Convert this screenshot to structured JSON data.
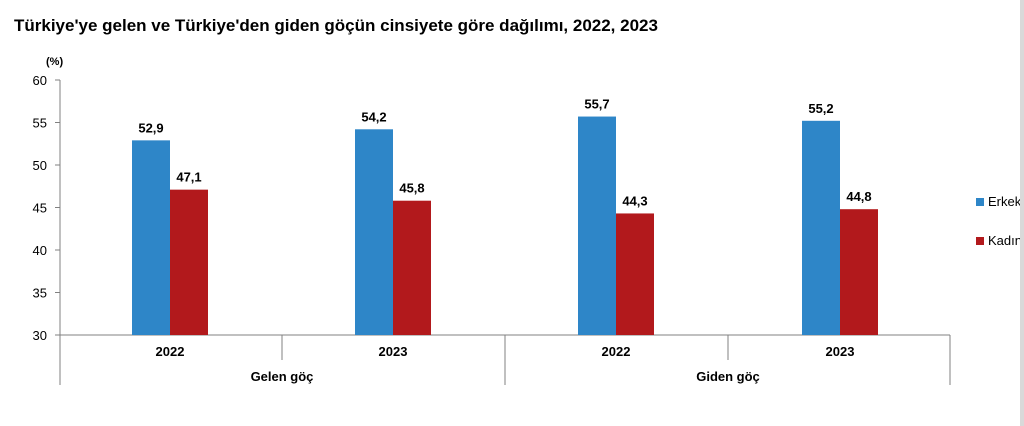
{
  "title": "Türkiye'ye gelen ve Türkiye'den giden göçün cinsiyete göre dağılımı, 2022, 2023",
  "chart_data": {
    "type": "bar",
    "unit_label": "(%)",
    "ylim": [
      30,
      60
    ],
    "yticks": [
      30,
      35,
      40,
      45,
      50,
      55,
      60
    ],
    "groups": [
      "Gelen göç",
      "Giden göç"
    ],
    "categories": [
      "2022",
      "2023",
      "2022",
      "2023"
    ],
    "category_group": [
      0,
      0,
      1,
      1
    ],
    "series": [
      {
        "name": "Erkek",
        "color": "#2e86c8",
        "values": [
          52.9,
          54.2,
          55.7,
          55.2
        ],
        "labels": [
          "52,9",
          "54,2",
          "55,7",
          "55,2"
        ]
      },
      {
        "name": "Kadın",
        "color": "#b2191c",
        "values": [
          47.1,
          45.8,
          44.3,
          44.8
        ],
        "labels": [
          "47,1",
          "45,8",
          "44,3",
          "44,8"
        ]
      }
    ],
    "legend_position": "right",
    "grid": false
  }
}
